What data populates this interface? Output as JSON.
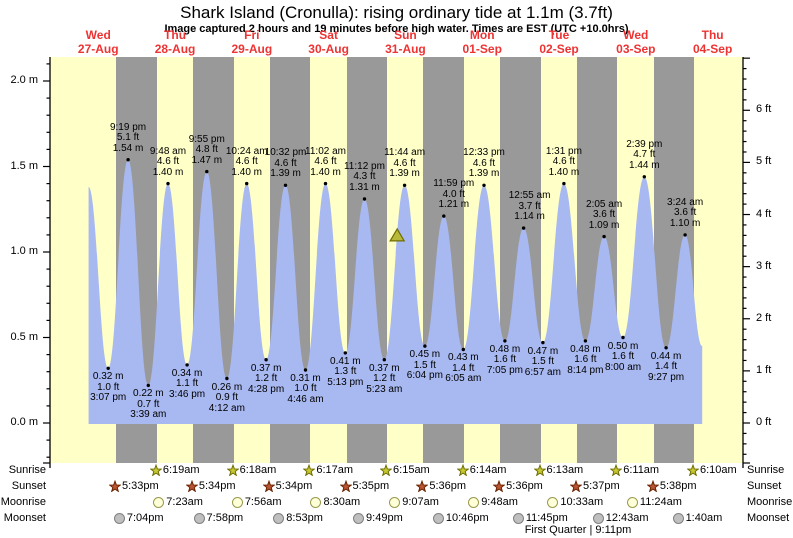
{
  "title": "Shark Island (Cronulla): rising  ordinary tide at 1.1m (3.7ft)",
  "subtitle": "Image captured 2 hours and 19 minutes before high water. Times are EST (UTC +10.0hrs)",
  "days": [
    {
      "name": "Wed",
      "date": "27-Aug"
    },
    {
      "name": "Thu",
      "date": "28-Aug"
    },
    {
      "name": "Fri",
      "date": "29-Aug"
    },
    {
      "name": "Sat",
      "date": "30-Aug"
    },
    {
      "name": "Sun",
      "date": "31-Aug"
    },
    {
      "name": "Mon",
      "date": "01-Sep"
    },
    {
      "name": "Tue",
      "date": "02-Sep"
    },
    {
      "name": "Wed",
      "date": "03-Sep"
    },
    {
      "name": "Thu",
      "date": "04-Sep"
    }
  ],
  "chart_data": {
    "type": "area",
    "title": "Shark Island (Cronulla) tide height",
    "ylabel_left": "metres",
    "ylabel_right": "feet",
    "ylim_m": [
      -0.23,
      2.14
    ],
    "grid": false,
    "y_ticks_m": {
      "values": [
        0,
        0.5,
        1,
        1.5,
        2
      ],
      "labels": [
        "0.0 m",
        "0.5 m",
        "1.0 m",
        "1.5 m",
        "2.0 m"
      ]
    },
    "y_ticks_ft": {
      "values": [
        0,
        1,
        2,
        3,
        4,
        5,
        6
      ],
      "labels": [
        "0 ft",
        "1 ft",
        "2 ft",
        "3 ft",
        "4 ft",
        "5 ft",
        "6 ft"
      ]
    },
    "tides": [
      {
        "day": 0,
        "type": "low",
        "time": "3:07 pm",
        "m": 0.32,
        "ft": 1.0
      },
      {
        "day": 0,
        "type": "high",
        "time": "9:19 pm",
        "m": 1.54,
        "ft": 5.1
      },
      {
        "day": 1,
        "type": "low",
        "time": "3:39 am",
        "m": 0.22,
        "ft": 0.7
      },
      {
        "day": 1,
        "type": "high",
        "time": "9:48 am",
        "m": 1.4,
        "ft": 4.6
      },
      {
        "day": 1,
        "type": "low",
        "time": "3:46 pm",
        "m": 0.34,
        "ft": 1.1
      },
      {
        "day": 1,
        "type": "high",
        "time": "9:55 pm",
        "m": 1.47,
        "ft": 4.8
      },
      {
        "day": 2,
        "type": "low",
        "time": "4:12 am",
        "m": 0.26,
        "ft": 0.9
      },
      {
        "day": 2,
        "type": "high",
        "time": "10:24 am",
        "m": 1.4,
        "ft": 4.6
      },
      {
        "day": 2,
        "type": "low",
        "time": "4:28 pm",
        "m": 0.37,
        "ft": 1.2
      },
      {
        "day": 2,
        "type": "high",
        "time": "10:32 pm",
        "m": 1.39,
        "ft": 4.6
      },
      {
        "day": 3,
        "type": "low",
        "time": "4:46 am",
        "m": 0.31,
        "ft": 1.0
      },
      {
        "day": 3,
        "type": "high",
        "time": "11:02 am",
        "m": 1.4,
        "ft": 4.6
      },
      {
        "day": 3,
        "type": "low",
        "time": "5:13 pm",
        "m": 0.41,
        "ft": 1.3
      },
      {
        "day": 3,
        "type": "high",
        "time": "11:12 pm",
        "m": 1.31,
        "ft": 4.3
      },
      {
        "day": 4,
        "type": "low",
        "time": "5:23 am",
        "m": 0.37,
        "ft": 1.2
      },
      {
        "day": 4,
        "type": "high",
        "time": "11:44 am",
        "m": 1.39,
        "ft": 4.6
      },
      {
        "day": 4,
        "type": "low",
        "time": "6:04 pm",
        "m": 0.45,
        "ft": 1.5
      },
      {
        "day": 4,
        "type": "high",
        "time": "11:59 pm",
        "m": 1.21,
        "ft": 4.0
      },
      {
        "day": 5,
        "type": "low",
        "time": "6:05 am",
        "m": 0.43,
        "ft": 1.4
      },
      {
        "day": 5,
        "type": "high",
        "time": "12:33 pm",
        "m": 1.39,
        "ft": 4.6
      },
      {
        "day": 5,
        "type": "low",
        "time": "7:05 pm",
        "m": 0.48,
        "ft": 1.6
      },
      {
        "day": 6,
        "type": "high",
        "time": "12:55 am",
        "m": 1.14,
        "ft": 3.7
      },
      {
        "day": 6,
        "type": "low",
        "time": "6:57 am",
        "m": 0.47,
        "ft": 1.5
      },
      {
        "day": 6,
        "type": "high",
        "time": "1:31 pm",
        "m": 1.4,
        "ft": 4.6
      },
      {
        "day": 6,
        "type": "low",
        "time": "8:14 pm",
        "m": 0.48,
        "ft": 1.6
      },
      {
        "day": 7,
        "type": "high",
        "time": "2:05 am",
        "m": 1.09,
        "ft": 3.6
      },
      {
        "day": 7,
        "type": "low",
        "time": "8:00 am",
        "m": 0.5,
        "ft": 1.6
      },
      {
        "day": 7,
        "type": "high",
        "time": "2:39 pm",
        "m": 1.44,
        "ft": 4.7
      },
      {
        "day": 7,
        "type": "low",
        "time": "9:27 pm",
        "m": 0.44,
        "ft": 1.4
      },
      {
        "day": 8,
        "type": "high",
        "time": "3:24 am",
        "m": 1.1,
        "ft": 3.6
      }
    ],
    "curve_edge_start": {
      "day": 0,
      "time": "9:00 am",
      "m": 1.38
    },
    "curve_edge_end": {
      "day": 8,
      "time": "8:45 am",
      "m": 0.45
    },
    "current_marker": {
      "day": 4,
      "time": "9:25 am",
      "m": 1.1
    }
  },
  "astronomy": {
    "row_labels": [
      "Sunrise",
      "Sunset",
      "Moonrise",
      "Moonset"
    ],
    "sunrise": {
      "label": "Sunrise",
      "times": [
        {
          "day": 1,
          "time": "6:19am"
        },
        {
          "day": 2,
          "time": "6:18am"
        },
        {
          "day": 3,
          "time": "6:17am"
        },
        {
          "day": 4,
          "time": "6:15am"
        },
        {
          "day": 5,
          "time": "6:14am"
        },
        {
          "day": 6,
          "time": "6:13am"
        },
        {
          "day": 7,
          "time": "6:11am"
        },
        {
          "day": 8,
          "time": "6:10am"
        }
      ]
    },
    "sunset": {
      "label": "Sunset",
      "times": [
        {
          "day": 0,
          "time": "5:33pm"
        },
        {
          "day": 1,
          "time": "5:34pm"
        },
        {
          "day": 2,
          "time": "5:34pm"
        },
        {
          "day": 3,
          "time": "5:35pm"
        },
        {
          "day": 4,
          "time": "5:36pm"
        },
        {
          "day": 5,
          "time": "5:36pm"
        },
        {
          "day": 6,
          "time": "5:37pm"
        },
        {
          "day": 7,
          "time": "5:38pm"
        }
      ]
    },
    "moonrise": {
      "label": "Moonrise",
      "times": [
        {
          "day": 1,
          "time": "7:23am"
        },
        {
          "day": 2,
          "time": "7:56am"
        },
        {
          "day": 3,
          "time": "8:30am"
        },
        {
          "day": 4,
          "time": "9:07am"
        },
        {
          "day": 5,
          "time": "9:48am"
        },
        {
          "day": 6,
          "time": "10:33am"
        },
        {
          "day": 7,
          "time": "11:24am"
        }
      ]
    },
    "moonset": {
      "label": "Moonset",
      "times": [
        {
          "day": 0,
          "time": "7:04pm"
        },
        {
          "day": 1,
          "time": "7:58pm"
        },
        {
          "day": 2,
          "time": "8:53pm"
        },
        {
          "day": 3,
          "time": "9:49pm"
        },
        {
          "day": 4,
          "time": "10:46pm"
        },
        {
          "day": 5,
          "time": "11:45pm"
        },
        {
          "day": 7,
          "time": "12:43am"
        },
        {
          "day": 8,
          "time": "1:40am"
        }
      ]
    }
  },
  "moon_phase": "First Quarter | 9:11pm",
  "colors": {
    "day_band": "#ffffc8",
    "night_band": "#999999",
    "tide_fill": "#a8b8f0",
    "date_red": "#ee3333",
    "sunrise_star": "#c8c832",
    "sunrise_star_edge": "#6e6e00",
    "sunset_star": "#bb5533",
    "sunset_star_edge": "#662200",
    "moonrise_circle": "#ffffd8",
    "moonrise_edge": "#99994d",
    "moonset_circle": "#bfbfbf",
    "moonset_edge": "#808080",
    "marker_fill": "#b8b83a",
    "marker_edge": "#6e6e00"
  }
}
